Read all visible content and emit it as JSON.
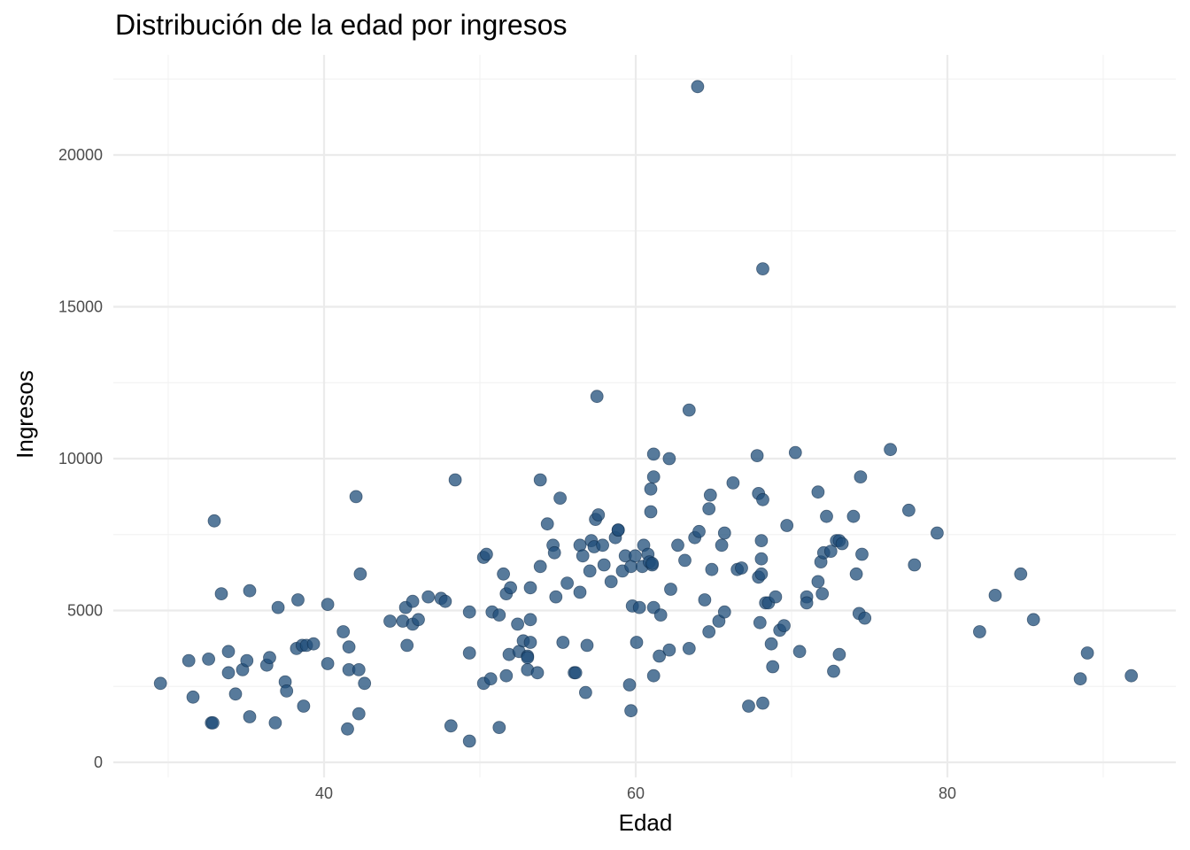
{
  "chart_data": {
    "type": "scatter",
    "title": "Distribución de la edad por ingresos",
    "xlabel": "Edad",
    "ylabel": "Ingresos",
    "xlim": [
      26.9,
      94.6
    ],
    "ylim": [
      -600,
      23100
    ],
    "x_ticks": [
      40,
      60,
      80
    ],
    "x_tick_labels": [
      "40",
      "60",
      "80"
    ],
    "y_ticks": [
      0,
      5000,
      10000,
      15000,
      20000
    ],
    "y_tick_labels": [
      "0",
      "5000",
      "10000",
      "15000",
      "20000"
    ],
    "grid": true,
    "legend": "none",
    "point_color": "#1f4e79",
    "points": [
      [
        29.5,
        2600
      ],
      [
        31.5,
        3350
      ],
      [
        31.8,
        2150
      ],
      [
        32.9,
        3400
      ],
      [
        33.1,
        1300
      ],
      [
        33.2,
        1300
      ],
      [
        33.3,
        7950
      ],
      [
        33.8,
        5550
      ],
      [
        34.3,
        3650
      ],
      [
        34.3,
        2950
      ],
      [
        34.8,
        2250
      ],
      [
        35.3,
        3050
      ],
      [
        35.6,
        3350
      ],
      [
        35.8,
        1500
      ],
      [
        35.8,
        5650
      ],
      [
        37.0,
        3200
      ],
      [
        37.2,
        3450
      ],
      [
        37.6,
        1300
      ],
      [
        37.8,
        5100
      ],
      [
        38.3,
        2650
      ],
      [
        38.4,
        2350
      ],
      [
        39.1,
        3750
      ],
      [
        39.2,
        5350
      ],
      [
        39.5,
        3850
      ],
      [
        39.6,
        1850
      ],
      [
        39.8,
        3850
      ],
      [
        40.3,
        3900
      ],
      [
        41.3,
        5200
      ],
      [
        41.3,
        3250
      ],
      [
        42.4,
        4300
      ],
      [
        42.7,
        1100
      ],
      [
        42.8,
        3800
      ],
      [
        42.8,
        3050
      ],
      [
        43.3,
        8750
      ],
      [
        43.5,
        3050
      ],
      [
        43.6,
        6200
      ],
      [
        43.5,
        1600
      ],
      [
        43.9,
        2600
      ],
      [
        45.7,
        4650
      ],
      [
        46.6,
        4650
      ],
      [
        46.8,
        5100
      ],
      [
        46.9,
        3850
      ],
      [
        47.3,
        4550
      ],
      [
        47.3,
        5300
      ],
      [
        47.7,
        4700
      ],
      [
        48.4,
        5450
      ],
      [
        49.3,
        5400
      ],
      [
        49.6,
        5300
      ],
      [
        50.0,
        1200
      ],
      [
        50.3,
        9300
      ],
      [
        51.3,
        700
      ],
      [
        51.3,
        3600
      ],
      [
        51.3,
        4950
      ],
      [
        52.3,
        2600
      ],
      [
        52.3,
        6750
      ],
      [
        52.5,
        6850
      ],
      [
        52.8,
        2750
      ],
      [
        52.9,
        4950
      ],
      [
        53.4,
        4850
      ],
      [
        53.4,
        1150
      ],
      [
        53.7,
        6200
      ],
      [
        53.9,
        5550
      ],
      [
        53.9,
        2850
      ],
      [
        54.1,
        3550
      ],
      [
        54.2,
        5750
      ],
      [
        54.7,
        4550
      ],
      [
        54.8,
        3650
      ],
      [
        55.1,
        4000
      ],
      [
        55.4,
        3050
      ],
      [
        55.4,
        3500
      ],
      [
        55.4,
        3450
      ],
      [
        55.6,
        4700
      ],
      [
        55.6,
        3950
      ],
      [
        55.6,
        5750
      ],
      [
        56.1,
        2950
      ],
      [
        56.3,
        9300
      ],
      [
        56.3,
        6450
      ],
      [
        56.8,
        7850
      ],
      [
        57.2,
        7150
      ],
      [
        57.3,
        6900
      ],
      [
        57.4,
        5450
      ],
      [
        57.7,
        8700
      ],
      [
        57.9,
        3950
      ],
      [
        58.2,
        5900
      ],
      [
        58.7,
        2950
      ],
      [
        58.8,
        2950
      ],
      [
        59.1,
        7150
      ],
      [
        59.1,
        5600
      ],
      [
        59.3,
        6800
      ],
      [
        59.5,
        2300
      ],
      [
        59.6,
        3850
      ],
      [
        59.8,
        6300
      ],
      [
        59.9,
        7300
      ],
      [
        60.1,
        7100
      ],
      [
        60.2,
        8000
      ],
      [
        60.3,
        12050
      ],
      [
        60.4,
        8150
      ],
      [
        60.7,
        7150
      ],
      [
        60.8,
        6500
      ],
      [
        61.3,
        5950
      ],
      [
        61.6,
        7400
      ],
      [
        61.8,
        7650
      ],
      [
        61.8,
        7650
      ],
      [
        62.1,
        6300
      ],
      [
        62.3,
        6800
      ],
      [
        62.6,
        2550
      ],
      [
        62.7,
        6450
      ],
      [
        62.7,
        1700
      ],
      [
        62.8,
        5150
      ],
      [
        63.0,
        6800
      ],
      [
        63.1,
        3950
      ],
      [
        63.3,
        5100
      ],
      [
        63.5,
        6450
      ],
      [
        63.6,
        7150
      ],
      [
        63.9,
        6850
      ],
      [
        64.0,
        6600
      ],
      [
        64.1,
        9000
      ],
      [
        64.1,
        8250
      ],
      [
        64.2,
        6500
      ],
      [
        64.2,
        6550
      ],
      [
        64.3,
        10150
      ],
      [
        64.3,
        9400
      ],
      [
        64.3,
        5100
      ],
      [
        64.3,
        2850
      ],
      [
        64.7,
        3500
      ],
      [
        64.8,
        4850
      ],
      [
        65.4,
        3700
      ],
      [
        65.4,
        10000
      ],
      [
        65.5,
        5700
      ],
      [
        66.0,
        7150
      ],
      [
        66.5,
        6650
      ],
      [
        66.8,
        11600
      ],
      [
        66.8,
        3750
      ],
      [
        67.2,
        7400
      ],
      [
        67.4,
        22250
      ],
      [
        67.5,
        7600
      ],
      [
        67.9,
        5350
      ],
      [
        68.2,
        4300
      ],
      [
        68.2,
        8350
      ],
      [
        68.3,
        8800
      ],
      [
        68.4,
        6350
      ],
      [
        68.9,
        4650
      ],
      [
        69.1,
        7150
      ],
      [
        69.3,
        7550
      ],
      [
        69.3,
        4950
      ],
      [
        69.9,
        9200
      ],
      [
        70.2,
        6350
      ],
      [
        70.5,
        6400
      ],
      [
        71.0,
        1850
      ],
      [
        71.6,
        10100
      ],
      [
        71.7,
        8850
      ],
      [
        71.7,
        6100
      ],
      [
        71.8,
        4600
      ],
      [
        71.9,
        6200
      ],
      [
        71.9,
        6700
      ],
      [
        71.9,
        7300
      ],
      [
        72.0,
        16250
      ],
      [
        72.0,
        8650
      ],
      [
        72.0,
        1950
      ],
      [
        72.2,
        5250
      ],
      [
        72.4,
        5250
      ],
      [
        72.6,
        3900
      ],
      [
        72.7,
        3150
      ],
      [
        72.9,
        5450
      ],
      [
        73.2,
        4350
      ],
      [
        73.5,
        4500
      ],
      [
        73.7,
        7800
      ],
      [
        74.3,
        10200
      ],
      [
        74.6,
        3650
      ],
      [
        75.1,
        5450
      ],
      [
        75.1,
        5250
      ],
      [
        75.9,
        5950
      ],
      [
        75.9,
        8900
      ],
      [
        76.1,
        6600
      ],
      [
        76.2,
        5550
      ],
      [
        76.3,
        6900
      ],
      [
        76.5,
        8100
      ],
      [
        76.8,
        6950
      ],
      [
        77.0,
        3000
      ],
      [
        77.2,
        7300
      ],
      [
        77.4,
        7300
      ],
      [
        77.4,
        3550
      ],
      [
        77.6,
        7200
      ],
      [
        78.4,
        8100
      ],
      [
        78.6,
        6200
      ],
      [
        78.8,
        4900
      ],
      [
        78.9,
        9400
      ],
      [
        79.0,
        6850
      ],
      [
        79.2,
        4750
      ],
      [
        81.0,
        10300
      ],
      [
        82.3,
        8300
      ],
      [
        82.7,
        6500
      ],
      [
        84.3,
        7550
      ],
      [
        87.3,
        4300
      ],
      [
        88.4,
        5500
      ],
      [
        90.2,
        6200
      ],
      [
        91.1,
        4700
      ],
      [
        94.4,
        2750
      ],
      [
        94.9,
        3600
      ],
      [
        98.0,
        2850
      ]
    ]
  }
}
